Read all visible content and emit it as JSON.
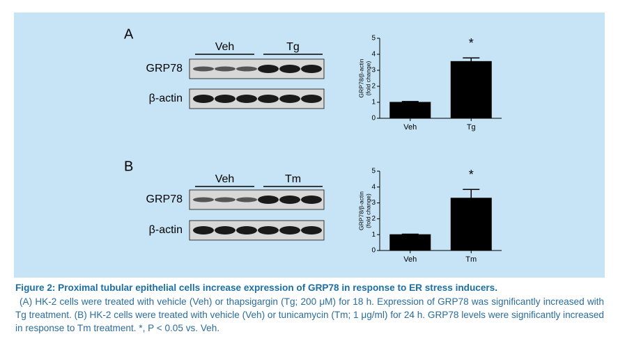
{
  "chart_data": [
    {
      "type": "bar",
      "ylabel": [
        "GRP78/β-actin",
        "(fold change)"
      ],
      "categories": [
        "Veh",
        "Tg"
      ],
      "values": [
        1.0,
        3.55
      ],
      "errors": [
        0.05,
        0.22
      ],
      "color": "#000000",
      "ylim": [
        0,
        5
      ],
      "yticks": [
        0,
        1,
        2,
        3,
        4,
        5
      ],
      "annotations": [
        "*"
      ]
    },
    {
      "type": "bar",
      "ylabel": [
        "GRP78/β-actin",
        "(fold change)"
      ],
      "categories": [
        "Veh",
        "Tm"
      ],
      "values": [
        1.0,
        3.3
      ],
      "errors": [
        0.03,
        0.55
      ],
      "color": "#000000",
      "ylim": [
        0,
        5
      ],
      "yticks": [
        0,
        1,
        2,
        3,
        4,
        5
      ],
      "annotations": [
        "*"
      ]
    }
  ],
  "blots": [
    {
      "panel": "A",
      "groups": [
        "Veh",
        "Tg"
      ],
      "rows": [
        "GRP78",
        "β-actin"
      ]
    },
    {
      "panel": "B",
      "groups": [
        "Veh",
        "Tm"
      ],
      "rows": [
        "GRP78",
        "β-actin"
      ]
    }
  ],
  "caption": {
    "title": "Figure 2: Proximal tubular epithelial cells increase expression of GRP78 in response to ER stress inducers.",
    "body": "(A) HK-2 cells were treated with vehicle (Veh) or thapsigargin (Tg; 200 μM) for 18 h. Expression of GRP78 was significantly increased with Tg treatment. (B) HK-2 cells were treated with vehicle (Veh) or tunicamycin (Tm; 1 μg/ml) for 24 h. GRP78 levels were significantly increased in response to Tm treatment. *, P < 0.05 vs. Veh."
  }
}
